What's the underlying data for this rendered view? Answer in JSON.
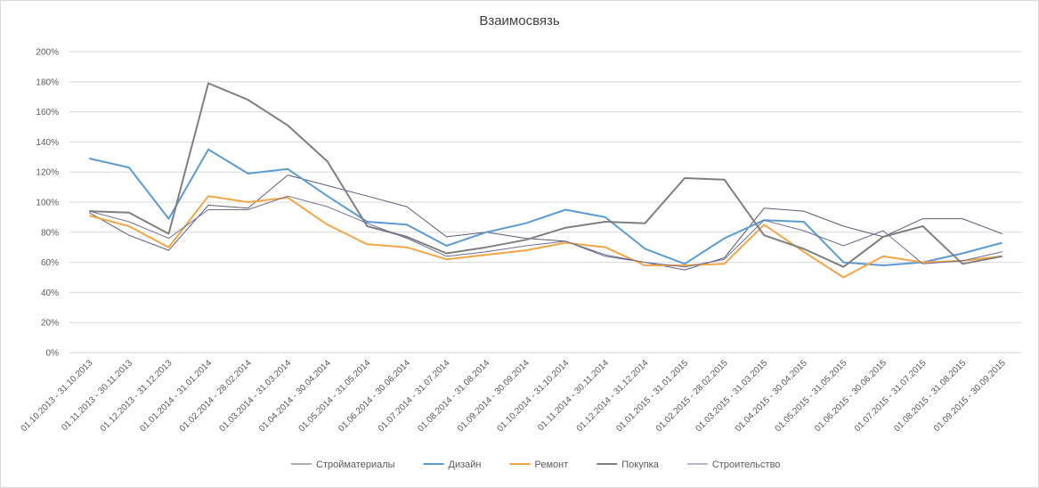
{
  "chart_data": {
    "type": "line",
    "title": "Взаимосвязь",
    "xlabel": "",
    "ylabel": "",
    "ylim": [
      0,
      200
    ],
    "y_ticks": [
      "0%",
      "20%",
      "40%",
      "60%",
      "80%",
      "100%",
      "120%",
      "140%",
      "160%",
      "180%",
      "200%"
    ],
    "grid": "horizontal",
    "legend_position": "bottom",
    "categories": [
      "01.10.2013 - 31.10.2013",
      "01.11.2013 - 30.11.2013",
      "01.12.2013 - 31.12.2013",
      "01.01.2014 - 31.01.2014",
      "01.02.2014 - 28.02.2014",
      "01.03.2014 - 31.03.2014",
      "01.04.2014 - 30.04.2014",
      "01.05.2014 - 31.05.2014",
      "01.06.2014 - 30.06.2014",
      "01.07.2014 - 31.07.2014",
      "01.08.2014 - 31.08.2014",
      "01.09.2014 - 30.09.2014",
      "01.10.2014 - 31.10.2014",
      "01.11.2014 - 30.11.2014",
      "01.12.2014 - 31.12.2014",
      "01.01.2015 - 31.01.2015",
      "01.02.2015 - 28.02.2015",
      "01.03.2015 - 31.03.2015",
      "01.04.2015 - 30.04.2015",
      "01.05.2015 - 31.05.2015",
      "01.06.2015 - 30.06.2015",
      "01.07.2015 - 31.07.2015",
      "01.08.2015 - 31.08.2015",
      "01.09.2015 - 30.09.2015"
    ],
    "series": [
      {
        "name": "Стройматериалы",
        "color": "#5b5b7a",
        "width": 1,
        "values": [
          93,
          78,
          68,
          98,
          96,
          118,
          111,
          104,
          97,
          77,
          80,
          76,
          74,
          64,
          60,
          55,
          63,
          96,
          94,
          84,
          77,
          89,
          89,
          79
        ]
      },
      {
        "name": "Дизайн",
        "color": "#5b9bd5",
        "width": 2,
        "values": [
          129,
          123,
          89,
          135,
          119,
          122,
          104,
          87,
          85,
          71,
          80,
          86,
          95,
          90,
          69,
          59,
          76,
          88,
          87,
          60,
          58,
          60,
          66,
          73
        ]
      },
      {
        "name": "Ремонт",
        "color": "#f4a546",
        "width": 2,
        "values": [
          91,
          84,
          70,
          104,
          100,
          103,
          85,
          72,
          70,
          62,
          65,
          68,
          73,
          70,
          58,
          58,
          59,
          85,
          67,
          50,
          64,
          60,
          61,
          64
        ]
      },
      {
        "name": "Покупка",
        "color": "#7f7f7f",
        "width": 2,
        "values": [
          94,
          93,
          79,
          179,
          168,
          151,
          127,
          84,
          77,
          66,
          70,
          75,
          83,
          87,
          86,
          116,
          115,
          78,
          69,
          57,
          77,
          84,
          59,
          64
        ]
      },
      {
        "name": "Строительство",
        "color": "#6e6e94",
        "width": 1,
        "values": [
          94,
          87,
          76,
          95,
          95,
          104,
          97,
          86,
          76,
          64,
          67,
          71,
          74,
          65,
          60,
          57,
          62,
          88,
          81,
          71,
          81,
          59,
          61,
          67
        ]
      }
    ]
  }
}
